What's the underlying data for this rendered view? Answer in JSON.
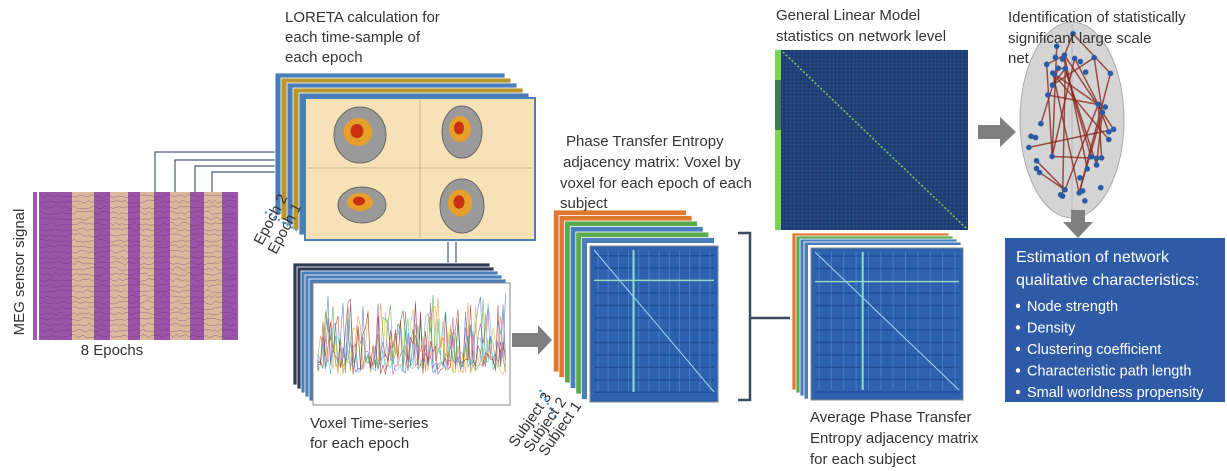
{
  "meg": {
    "label": "MEG sensor signal",
    "epochs": "8 Epochs"
  },
  "loreta": {
    "title": [
      "LORETA calculation for",
      "each time-sample of",
      "each epoch"
    ],
    "epochs": [
      "Epoch 2",
      "Epoch 1"
    ]
  },
  "voxel": {
    "caption": [
      "Voxel Time-series",
      "for each epoch"
    ]
  },
  "pte": {
    "title": [
      "Phase Transfer Entropy",
      "adjacency matrix: Voxel by",
      "voxel for each epoch of each",
      "subject"
    ],
    "subjects": [
      "Subject 3",
      "Subject 2",
      "Subject 1"
    ]
  },
  "average": {
    "caption": [
      "Average Phase Transfer",
      "Entropy adjacency matrix",
      "for each subject"
    ]
  },
  "glm": {
    "title": [
      "General Linear Model",
      "statistics on network level"
    ]
  },
  "network": {
    "title": [
      "Identification of statistically",
      "significant large scale",
      "net"
    ]
  },
  "characteristics": {
    "title": [
      "Estimation of network",
      "qualitative characteristics:"
    ],
    "items": [
      "Node strength",
      "Density",
      "Clustering coefficient",
      "Characteristic path length",
      "Small worldness propensity"
    ]
  }
}
